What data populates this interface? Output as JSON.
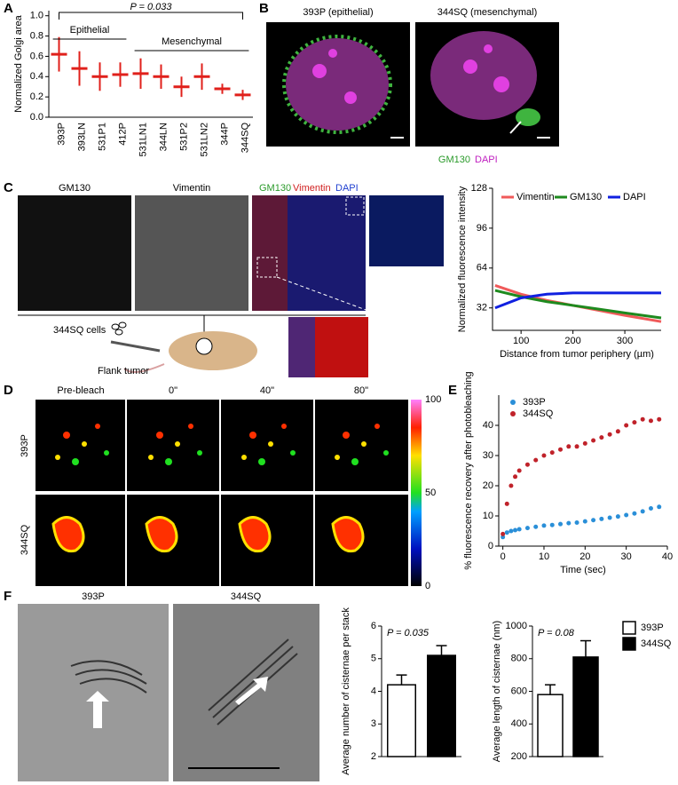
{
  "panel_letters": [
    "A",
    "B",
    "C",
    "D",
    "E",
    "F"
  ],
  "images": {
    "B_titles": [
      "393P (epithelial)",
      "344SQ (mesenchymal)"
    ],
    "B_stains": [
      "GM130",
      "DAPI"
    ],
    "C_titles": [
      "GM130",
      "Vimentin"
    ],
    "C_merge": [
      "GM130",
      "Vimentin",
      "DAPI"
    ],
    "C_schematic": [
      "344SQ cells",
      "Flank tumor"
    ],
    "D_titles": [
      "Pre-bleach",
      "0\"",
      "40\"",
      "80\""
    ],
    "D_rows": [
      "393P",
      "344SQ"
    ],
    "D_colorbar": [
      100,
      50,
      0
    ],
    "F_titles": [
      "393P",
      "344SQ"
    ]
  },
  "chart_data": [
    {
      "type": "dot",
      "ylabel": "Normalized Golgi area",
      "categories": [
        "393P",
        "393LN",
        "531P1",
        "412P",
        "531LN1",
        "344LN",
        "531P2",
        "531LN2",
        "344P",
        "344SQ"
      ],
      "values": [
        0.62,
        0.48,
        0.4,
        0.42,
        0.43,
        0.4,
        0.3,
        0.4,
        0.28,
        0.22
      ],
      "errors": [
        0.17,
        0.17,
        0.14,
        0.12,
        0.15,
        0.12,
        0.1,
        0.13,
        0.05,
        0.05
      ],
      "color": "#e0201b",
      "ylim": [
        0,
        1.05
      ],
      "yticks": [
        {
          "value": 0,
          "label": "0.0"
        },
        {
          "value": 0.2,
          "label": "0.2"
        },
        {
          "value": 0.4,
          "label": "0.4"
        },
        {
          "value": 0.6,
          "label": "0.6"
        },
        {
          "value": 0.8,
          "label": "0.8"
        },
        {
          "value": 1,
          "label": "1.0"
        }
      ],
      "annotations": [
        "P = 0.033",
        "Epithelial",
        "Mesenchymal"
      ]
    },
    {
      "type": "line",
      "ylabel": "Normalized fluorescence intensity",
      "xlabel": "Distance from tumor periphery (µm)",
      "x": [
        50,
        100,
        150,
        200,
        250,
        300,
        370
      ],
      "series": [
        {
          "name": "Vimentin",
          "color": "#f05a5a",
          "values": [
            50,
            43,
            38,
            34,
            30,
            26,
            21
          ]
        },
        {
          "name": "GM130",
          "color": "#1e8a1e",
          "values": [
            46,
            41,
            37,
            34,
            31,
            28,
            24
          ]
        },
        {
          "name": "DAPI",
          "color": "#1020e0",
          "values": [
            32,
            40,
            43,
            44,
            44,
            44,
            44
          ]
        }
      ],
      "xlim": [
        45,
        370
      ],
      "xticks": [
        100,
        200,
        300
      ],
      "ylim": [
        14,
        128
      ],
      "yticks": [
        32,
        64,
        96,
        128
      ],
      "legend": "top"
    },
    {
      "type": "scatter",
      "ylabel": "% fluorescence recovery after photobleaching",
      "xlabel": "Time (sec)",
      "x": [
        0,
        1,
        2,
        3,
        4,
        6,
        8,
        10,
        12,
        14,
        16,
        18,
        20,
        22,
        24,
        26,
        28,
        30,
        32,
        34,
        36,
        38
      ],
      "series": [
        {
          "name": "393P",
          "color": "#2a8fd8",
          "values": [
            3,
            4.5,
            5,
            5.3,
            5.6,
            6,
            6.4,
            6.8,
            7,
            7.3,
            7.6,
            7.8,
            8.2,
            8.6,
            9,
            9.4,
            9.8,
            10.3,
            10.8,
            11.5,
            12.5,
            13
          ]
        },
        {
          "name": "344SQ",
          "color": "#c0222a",
          "values": [
            4,
            14,
            20,
            23,
            25,
            27,
            28.5,
            30,
            31,
            32,
            33,
            33,
            34,
            35,
            36,
            37,
            38,
            40,
            41,
            42,
            41.5,
            42
          ]
        }
      ],
      "xlim": [
        -1,
        40
      ],
      "xticks": [
        0,
        10,
        20,
        30,
        40
      ],
      "ylim": [
        0,
        50
      ],
      "yticks": [
        0,
        10,
        20,
        30,
        40
      ],
      "legend": "top-left"
    },
    {
      "type": "bar",
      "ylabel": "Average number of cisternae per stack",
      "annotations": [
        "P = 0.035"
      ],
      "series": [
        {
          "color": "#ffffff",
          "values": [
            4.2
          ],
          "errors": [
            0.3
          ]
        },
        {
          "color": "#000000",
          "values": [
            5.1
          ],
          "errors": [
            0.3
          ]
        }
      ],
      "ylim": [
        2,
        6
      ],
      "yticks": [
        2,
        3,
        4,
        5,
        6
      ]
    },
    {
      "type": "bar",
      "ylabel": "Average length of cisternae (nm)",
      "annotations": [
        "P = 0.08"
      ],
      "series": [
        {
          "name": "393P",
          "color": "#ffffff",
          "values": [
            580
          ],
          "errors": [
            60
          ]
        },
        {
          "name": "344SQ",
          "color": "#000000",
          "values": [
            810
          ],
          "errors": [
            100
          ]
        }
      ],
      "ylim": [
        200,
        1000
      ],
      "yticks": [
        200,
        400,
        600,
        800,
        1000
      ],
      "legend": "right"
    }
  ]
}
